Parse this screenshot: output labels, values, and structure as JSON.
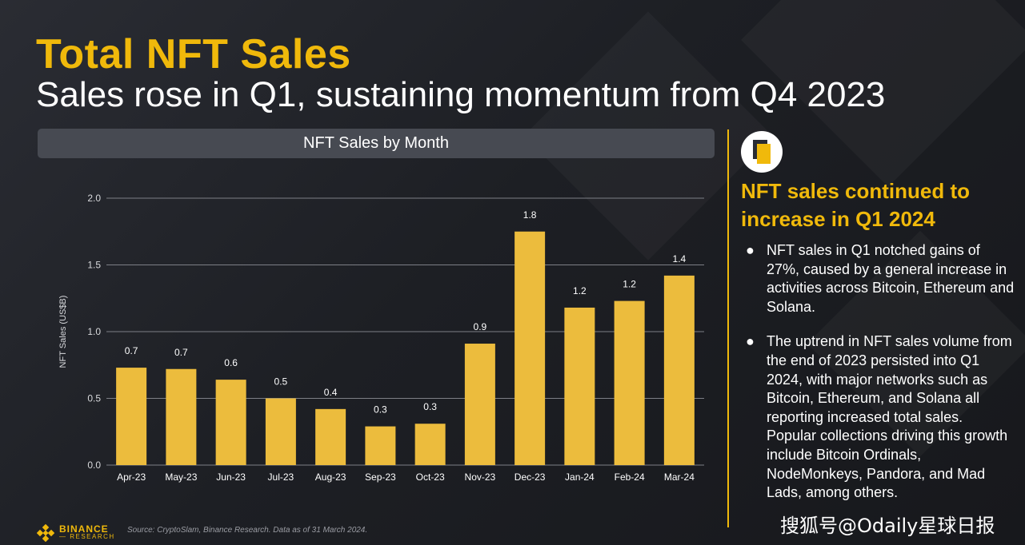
{
  "header": {
    "title": "Total NFT Sales",
    "subtitle": "Sales rose in Q1, sustaining momentum from Q4 2023"
  },
  "chart_header": "NFT Sales by Month",
  "chart_data": {
    "type": "bar",
    "title": "NFT Sales by Month",
    "xlabel": "",
    "ylabel": "NFT Sales (US$B)",
    "ylim": [
      0,
      2.0
    ],
    "yticks": [
      "0.0",
      "0.5",
      "1.0",
      "1.5",
      "2.0"
    ],
    "grid": true,
    "categories": [
      "Apr-23",
      "May-23",
      "Jun-23",
      "Jul-23",
      "Aug-23",
      "Sep-23",
      "Oct-23",
      "Nov-23",
      "Dec-23",
      "Jan-24",
      "Feb-24",
      "Mar-24"
    ],
    "values": [
      0.73,
      0.72,
      0.64,
      0.5,
      0.42,
      0.29,
      0.31,
      0.91,
      1.75,
      1.18,
      1.23,
      1.42
    ],
    "data_labels": [
      "0.7",
      "0.7",
      "0.6",
      "0.5",
      "0.4",
      "0.3",
      "0.3",
      "0.9",
      "1.8",
      "1.2",
      "1.2",
      "1.4"
    ],
    "bar_color": "#ecbc3d"
  },
  "sidebar": {
    "icon": "document-stack-icon",
    "title": "NFT sales continued to increase in Q1 2024",
    "bullet_symbol": "●",
    "bullets": [
      "NFT sales in Q1 notched gains of 27%, caused by a general increase in activities across Bitcoin, Ethereum and Solana.",
      "The uptrend in NFT sales volume from the end of 2023 persisted into Q1 2024, with major networks such as Bitcoin, Ethereum, and Solana all reporting increased total sales. Popular collections driving this growth include Bitcoin Ordinals, NodeMonkeys, Pandora, and Mad Lads, among others."
    ]
  },
  "footer": {
    "logo_main": "BINANCE",
    "logo_sub": "— RESEARCH",
    "source": "Source: CryptoSlam, Binance Research. Data as of 31 March 2024."
  },
  "watermark": "搜狐号@Odaily星球日报",
  "colors": {
    "accent": "#f0b90b",
    "bar": "#ecbc3d",
    "panel": "#474a52"
  }
}
